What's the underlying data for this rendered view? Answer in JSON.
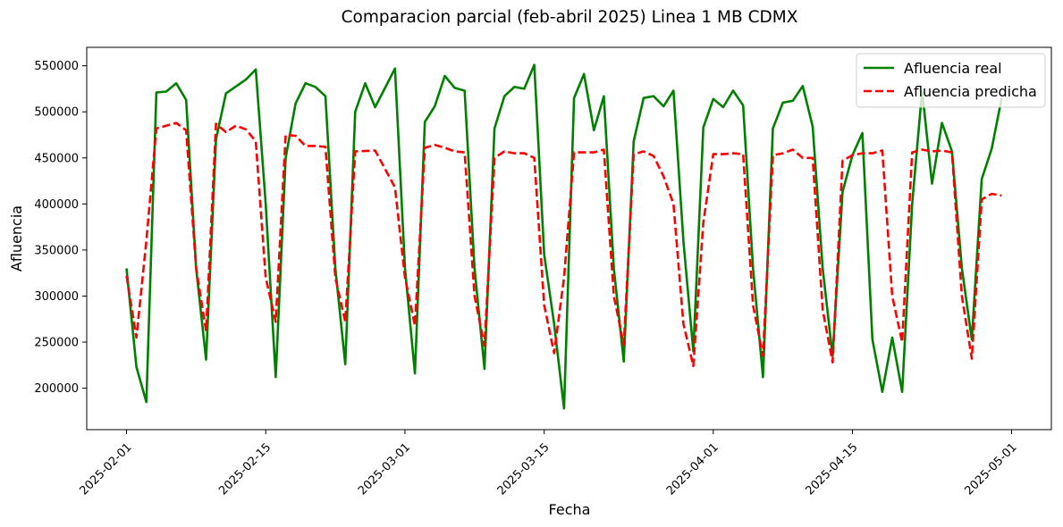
{
  "chart_data": {
    "type": "line",
    "title": "Comparacion parcial (feb-abril 2025) Linea 1 MB CDMX",
    "xlabel": "Fecha",
    "ylabel": "Afluencia",
    "xlim": [
      "2025-01-28",
      "2025-05-05"
    ],
    "ylim": [
      155000,
      570000
    ],
    "x_ticks": [
      "2025-02-01",
      "2025-02-15",
      "2025-03-01",
      "2025-03-15",
      "2025-04-01",
      "2025-04-15",
      "2025-05-01"
    ],
    "y_ticks": [
      200000,
      250000,
      300000,
      350000,
      400000,
      450000,
      500000,
      550000
    ],
    "y_tick_labels": [
      "200000",
      "250000",
      "300000",
      "350000",
      "400000",
      "450000",
      "500000",
      "550000"
    ],
    "grid": false,
    "legend_position": "top-right",
    "series": [
      {
        "name": "Afluencia real",
        "color": "#008000",
        "style": "solid",
        "points": [
          [
            "2025-02-01",
            330000
          ],
          [
            "2025-02-02",
            223000
          ],
          [
            "2025-02-03",
            185000
          ],
          [
            "2025-02-04",
            521000
          ],
          [
            "2025-02-05",
            522000
          ],
          [
            "2025-02-06",
            531000
          ],
          [
            "2025-02-07",
            513000
          ],
          [
            "2025-02-08",
            330000
          ],
          [
            "2025-02-09",
            231000
          ],
          [
            "2025-02-10",
            470000
          ],
          [
            "2025-02-11",
            520000
          ],
          [
            "2025-02-13",
            535000
          ],
          [
            "2025-02-14",
            546000
          ],
          [
            "2025-02-15",
            400000
          ],
          [
            "2025-02-16",
            212000
          ],
          [
            "2025-02-17",
            450000
          ],
          [
            "2025-02-18",
            509000
          ],
          [
            "2025-02-19",
            531000
          ],
          [
            "2025-02-20",
            527000
          ],
          [
            "2025-02-21",
            517000
          ],
          [
            "2025-02-22",
            330000
          ],
          [
            "2025-02-23",
            226000
          ],
          [
            "2025-02-24",
            500000
          ],
          [
            "2025-02-25",
            531000
          ],
          [
            "2025-02-26",
            505000
          ],
          [
            "2025-02-28",
            547000
          ],
          [
            "2025-03-01",
            330000
          ],
          [
            "2025-03-02",
            216000
          ],
          [
            "2025-03-03",
            489000
          ],
          [
            "2025-03-04",
            506000
          ],
          [
            "2025-03-05",
            539000
          ],
          [
            "2025-03-06",
            526000
          ],
          [
            "2025-03-07",
            523000
          ],
          [
            "2025-03-08",
            330000
          ],
          [
            "2025-03-09",
            221000
          ],
          [
            "2025-03-10",
            482000
          ],
          [
            "2025-03-11",
            517000
          ],
          [
            "2025-03-12",
            527000
          ],
          [
            "2025-03-13",
            525000
          ],
          [
            "2025-03-14",
            551000
          ],
          [
            "2025-03-15",
            345000
          ],
          [
            "2025-03-16",
            270000
          ],
          [
            "2025-03-17",
            178000
          ],
          [
            "2025-03-18",
            515000
          ],
          [
            "2025-03-19",
            541000
          ],
          [
            "2025-03-20",
            480000
          ],
          [
            "2025-03-21",
            517000
          ],
          [
            "2025-03-22",
            330000
          ],
          [
            "2025-03-23",
            229000
          ],
          [
            "2025-03-24",
            468000
          ],
          [
            "2025-03-25",
            515000
          ],
          [
            "2025-03-26",
            517000
          ],
          [
            "2025-03-27",
            506000
          ],
          [
            "2025-03-28",
            523000
          ],
          [
            "2025-03-29",
            360000
          ],
          [
            "2025-03-30",
            240000
          ],
          [
            "2025-03-31",
            483000
          ],
          [
            "2025-04-01",
            514000
          ],
          [
            "2025-04-02",
            505000
          ],
          [
            "2025-04-03",
            523000
          ],
          [
            "2025-04-04",
            507000
          ],
          [
            "2025-04-05",
            330000
          ],
          [
            "2025-04-06",
            212000
          ],
          [
            "2025-04-07",
            482000
          ],
          [
            "2025-04-08",
            510000
          ],
          [
            "2025-04-09",
            512000
          ],
          [
            "2025-04-10",
            528000
          ],
          [
            "2025-04-11",
            484000
          ],
          [
            "2025-04-12",
            330000
          ],
          [
            "2025-04-13",
            235000
          ],
          [
            "2025-04-14",
            413000
          ],
          [
            "2025-04-15",
            453000
          ],
          [
            "2025-04-16",
            477000
          ],
          [
            "2025-04-17",
            253000
          ],
          [
            "2025-04-18",
            196000
          ],
          [
            "2025-04-19",
            255000
          ],
          [
            "2025-04-20",
            196000
          ],
          [
            "2025-04-21",
            400000
          ],
          [
            "2025-04-22",
            523000
          ],
          [
            "2025-04-23",
            422000
          ],
          [
            "2025-04-24",
            488000
          ],
          [
            "2025-04-25",
            457000
          ],
          [
            "2025-04-26",
            330000
          ],
          [
            "2025-04-27",
            253000
          ],
          [
            "2025-04-28",
            427000
          ],
          [
            "2025-04-29",
            460000
          ],
          [
            "2025-04-30",
            515000
          ]
        ]
      },
      {
        "name": "Afluencia predicha",
        "color": "#ff0000",
        "style": "dashed",
        "points": [
          [
            "2025-02-01",
            322000
          ],
          [
            "2025-02-02",
            255000
          ],
          [
            "2025-02-03",
            360000
          ],
          [
            "2025-02-04",
            482000
          ],
          [
            "2025-02-05",
            485000
          ],
          [
            "2025-02-06",
            488000
          ],
          [
            "2025-02-07",
            480000
          ],
          [
            "2025-02-08",
            330000
          ],
          [
            "2025-02-09",
            262000
          ],
          [
            "2025-02-10",
            487000
          ],
          [
            "2025-02-11",
            478000
          ],
          [
            "2025-02-12",
            485000
          ],
          [
            "2025-02-13",
            481000
          ],
          [
            "2025-02-14",
            468000
          ],
          [
            "2025-02-15",
            320000
          ],
          [
            "2025-02-16",
            272000
          ],
          [
            "2025-02-17",
            475000
          ],
          [
            "2025-02-18",
            474000
          ],
          [
            "2025-02-19",
            463000
          ],
          [
            "2025-02-20",
            463000
          ],
          [
            "2025-02-21",
            462000
          ],
          [
            "2025-02-22",
            320000
          ],
          [
            "2025-02-23",
            272000
          ],
          [
            "2025-02-24",
            457000
          ],
          [
            "2025-02-26",
            458000
          ],
          [
            "2025-02-28",
            418000
          ],
          [
            "2025-03-01",
            320000
          ],
          [
            "2025-03-02",
            268000
          ],
          [
            "2025-03-03",
            461000
          ],
          [
            "2025-03-04",
            464000
          ],
          [
            "2025-03-05",
            461000
          ],
          [
            "2025-03-06",
            457000
          ],
          [
            "2025-03-07",
            456000
          ],
          [
            "2025-03-08",
            300000
          ],
          [
            "2025-03-09",
            246000
          ],
          [
            "2025-03-10",
            450000
          ],
          [
            "2025-03-11",
            457000
          ],
          [
            "2025-03-12",
            455000
          ],
          [
            "2025-03-13",
            455000
          ],
          [
            "2025-03-14",
            450000
          ],
          [
            "2025-03-15",
            290000
          ],
          [
            "2025-03-16",
            238000
          ],
          [
            "2025-03-17",
            320000
          ],
          [
            "2025-03-18",
            456000
          ],
          [
            "2025-03-19",
            456000
          ],
          [
            "2025-03-20",
            456000
          ],
          [
            "2025-03-21",
            459000
          ],
          [
            "2025-03-22",
            300000
          ],
          [
            "2025-03-23",
            247000
          ],
          [
            "2025-03-24",
            454000
          ],
          [
            "2025-03-25",
            457000
          ],
          [
            "2025-03-26",
            452000
          ],
          [
            "2025-03-27",
            430000
          ],
          [
            "2025-03-28",
            400000
          ],
          [
            "2025-03-29",
            270000
          ],
          [
            "2025-03-30",
            224000
          ],
          [
            "2025-03-31",
            380000
          ],
          [
            "2025-04-01",
            454000
          ],
          [
            "2025-04-02",
            454000
          ],
          [
            "2025-04-03",
            455000
          ],
          [
            "2025-04-04",
            454000
          ],
          [
            "2025-04-05",
            290000
          ],
          [
            "2025-04-06",
            235000
          ],
          [
            "2025-04-07",
            453000
          ],
          [
            "2025-04-08",
            455000
          ],
          [
            "2025-04-09",
            459000
          ],
          [
            "2025-04-10",
            450000
          ],
          [
            "2025-04-11",
            450000
          ],
          [
            "2025-04-12",
            285000
          ],
          [
            "2025-04-13",
            228000
          ],
          [
            "2025-04-14",
            447000
          ],
          [
            "2025-04-15",
            453000
          ],
          [
            "2025-04-16",
            455000
          ],
          [
            "2025-04-17",
            455000
          ],
          [
            "2025-04-18",
            458000
          ],
          [
            "2025-04-19",
            300000
          ],
          [
            "2025-04-20",
            250000
          ],
          [
            "2025-04-21",
            456000
          ],
          [
            "2025-04-22",
            459000
          ],
          [
            "2025-04-23",
            457000
          ],
          [
            "2025-04-24",
            458000
          ],
          [
            "2025-04-25",
            456000
          ],
          [
            "2025-04-26",
            300000
          ],
          [
            "2025-04-27",
            232000
          ],
          [
            "2025-04-28",
            405000
          ],
          [
            "2025-04-29",
            411000
          ],
          [
            "2025-04-30",
            409000
          ]
        ]
      }
    ]
  }
}
